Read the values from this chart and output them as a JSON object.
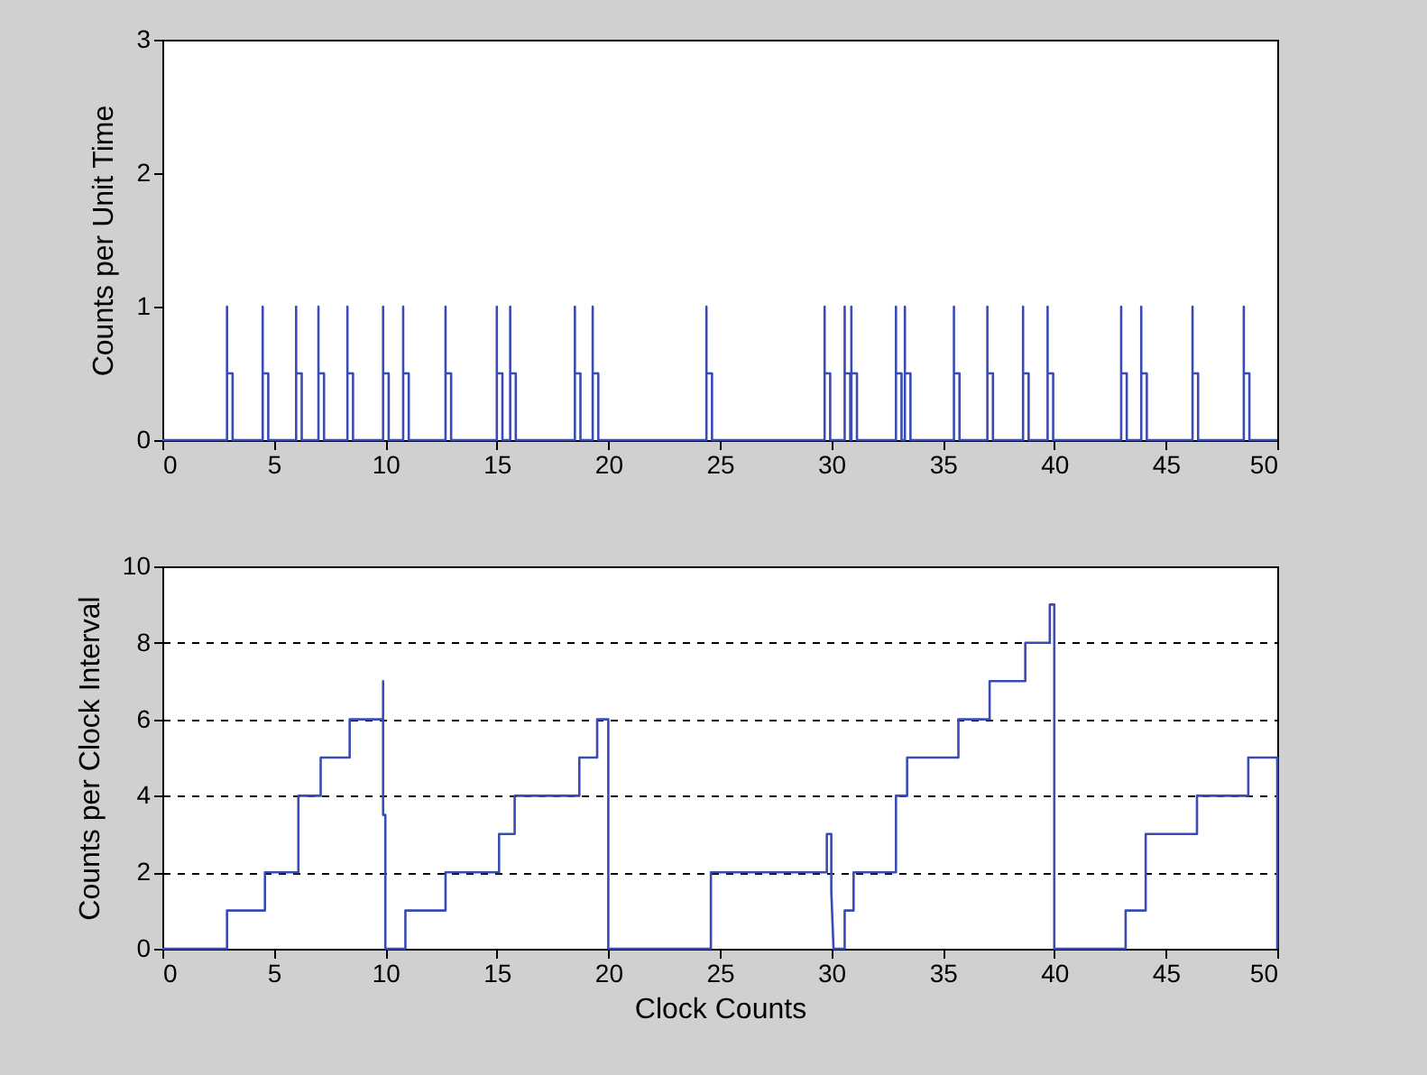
{
  "chart_data": [
    {
      "type": "line",
      "ylabel": "Counts per Unit Time",
      "xlim": [
        0,
        50
      ],
      "xticks": [
        0,
        5,
        10,
        15,
        20,
        25,
        30,
        35,
        40,
        45,
        50
      ],
      "ylim": [
        0,
        3
      ],
      "yticks": [
        0,
        1,
        2,
        3
      ],
      "series": [
        {
          "color": "#3a4cb4",
          "x": [
            0,
            2.9,
            2.9,
            2.9,
            2.9,
            3.15,
            3.15,
            4.5,
            4.5,
            4.5,
            4.5,
            4.75,
            4.75,
            6,
            6,
            6,
            6,
            6.25,
            6.25,
            7,
            7,
            7,
            7,
            7.25,
            7.25,
            8.3,
            8.3,
            8.3,
            8.3,
            8.55,
            8.55,
            9.9,
            9.9,
            9.9,
            9.9,
            10.15,
            10.15,
            10.8,
            10.8,
            10.8,
            10.8,
            11.05,
            11.05,
            12.7,
            12.7,
            12.7,
            12.7,
            12.95,
            12.95,
            15,
            15,
            15,
            15,
            15.25,
            15.25,
            15.6,
            15.6,
            15.6,
            15.6,
            15.85,
            15.85,
            18.5,
            18.5,
            18.5,
            18.5,
            18.75,
            18.75,
            19.3,
            19.3,
            19.3,
            19.3,
            19.55,
            19.55,
            24.4,
            24.4,
            24.4,
            24.4,
            24.65,
            24.65,
            29.7,
            29.7,
            29.7,
            29.7,
            29.95,
            29.95,
            30.6,
            30.6,
            30.6,
            30.6,
            30.85,
            30.85,
            30.9,
            30.9,
            30.9,
            30.9,
            31.15,
            31.15,
            32.9,
            32.9,
            32.9,
            32.9,
            33.15,
            33.15,
            33.3,
            33.3,
            33.3,
            33.3,
            33.55,
            33.55,
            35.5,
            35.5,
            35.5,
            35.5,
            35.75,
            35.75,
            37,
            37,
            37,
            37,
            37.25,
            37.25,
            38.6,
            38.6,
            38.6,
            38.6,
            38.85,
            38.85,
            39.7,
            39.7,
            39.7,
            39.7,
            39.95,
            39.95,
            43,
            43,
            43,
            43,
            43.25,
            43.25,
            43.9,
            43.9,
            43.9,
            43.9,
            44.15,
            44.15,
            46.2,
            46.2,
            46.2,
            46.2,
            46.45,
            46.45,
            48.5,
            48.5,
            48.5,
            48.5,
            48.75,
            48.75,
            50
          ],
          "values": [
            0,
            0,
            0.5,
            1,
            0.5,
            0.5,
            0,
            0,
            0.5,
            1,
            0.5,
            0.5,
            0,
            0,
            0.5,
            1,
            0.5,
            0.5,
            0,
            0,
            0.5,
            1,
            0.5,
            0.5,
            0,
            0,
            0.5,
            1,
            0.5,
            0.5,
            0,
            0,
            0.5,
            1,
            0.5,
            0.5,
            0,
            0,
            0.5,
            1,
            0.5,
            0.5,
            0,
            0,
            0.5,
            1,
            0.5,
            0.5,
            0,
            0,
            0.5,
            1,
            0.5,
            0.5,
            0,
            0,
            0.5,
            1,
            0.5,
            0.5,
            0,
            0,
            0.5,
            1,
            0.5,
            0.5,
            0,
            0,
            0.5,
            1,
            0.5,
            0.5,
            0,
            0,
            0.5,
            1,
            0.5,
            0.5,
            0,
            0,
            0.5,
            1,
            0.5,
            0.5,
            0,
            0,
            0.5,
            1,
            0.5,
            0.5,
            0,
            0,
            0.5,
            1,
            0.5,
            0.5,
            0,
            0,
            0.5,
            1,
            0.5,
            0.5,
            0,
            0,
            0.5,
            1,
            0.5,
            0.5,
            0,
            0,
            0.5,
            1,
            0.5,
            0.5,
            0,
            0,
            0.5,
            1,
            0.5,
            0.5,
            0,
            0,
            0.5,
            1,
            0.5,
            0.5,
            0,
            0,
            0.5,
            1,
            0.5,
            0.5,
            0,
            0,
            0.5,
            1,
            0.5,
            0.5,
            0,
            0,
            0.5,
            1,
            0.5,
            0.5,
            0,
            0,
            0.5,
            1,
            0.5,
            0.5,
            0,
            0,
            0.5,
            1,
            0.5,
            0.5,
            0,
            0
          ]
        }
      ]
    },
    {
      "type": "line",
      "xlabel": "Clock Counts",
      "ylabel": "Counts per Clock Interval",
      "xlim": [
        0,
        50
      ],
      "xticks": [
        0,
        5,
        10,
        15,
        20,
        25,
        30,
        35,
        40,
        45,
        50
      ],
      "ylim": [
        0,
        10
      ],
      "yticks": [
        0,
        2,
        4,
        6,
        8,
        10
      ],
      "grid": "y",
      "line_style": "solid",
      "series": [
        {
          "color": "#3a4cb4",
          "x": [
            0,
            2.9,
            2.9,
            4.6,
            4.6,
            6.1,
            6.1,
            7.1,
            7.1,
            8.4,
            8.4,
            9.9,
            9.9,
            9.9,
            10,
            10,
            10.9,
            10.9,
            12.7,
            12.7,
            15.1,
            15.1,
            15.8,
            15.8,
            18.7,
            18.7,
            19.5,
            19.5,
            20,
            20,
            20,
            24.6,
            24.6,
            29.8,
            29.8,
            30,
            30,
            30.1,
            30.6,
            30.6,
            31,
            31,
            32.9,
            32.9,
            33.4,
            33.4,
            35.7,
            35.7,
            37.1,
            37.1,
            38.7,
            38.7,
            39.8,
            39.8,
            40,
            40,
            40,
            43.2,
            43.2,
            44.1,
            44.1,
            46.4,
            46.4,
            48.7,
            48.7,
            50,
            50,
            50
          ],
          "values": [
            0,
            0,
            1,
            1,
            2,
            2,
            4,
            4,
            5,
            5,
            6,
            6,
            7,
            3.5,
            3.5,
            0,
            0,
            1,
            1,
            2,
            2,
            3,
            3,
            4,
            4,
            5,
            5,
            6,
            6,
            3,
            0,
            0,
            2,
            2,
            3,
            3,
            1.5,
            0,
            0,
            1,
            1,
            2,
            2,
            4,
            4,
            5,
            5,
            6,
            6,
            7,
            7,
            8,
            8,
            9,
            9,
            4.5,
            0,
            0,
            1,
            1,
            3,
            3,
            4,
            4,
            5,
            5,
            2.5,
            0
          ]
        }
      ]
    }
  ]
}
